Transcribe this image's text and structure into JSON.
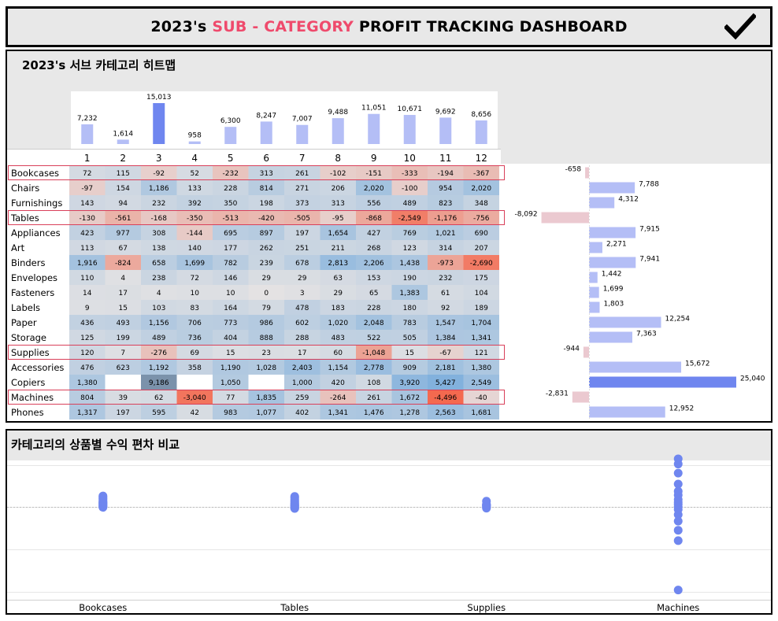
{
  "header": {
    "title_prefix": "2023's",
    "title_accent": "SUB - CATEGORY",
    "title_suffix": "PROFIT TRACKING DASHBOARD",
    "accent_color": "#ef4a6c",
    "check_icon": "checkmark-icon"
  },
  "heatmap_panel": {
    "title": "2023's 서브 카테고리 히트맵"
  },
  "compare_panel": {
    "title": "카테고리의 상품별 수익 편차 비교"
  },
  "chart_data": [
    {
      "type": "bar",
      "name": "monthly-total",
      "categories": [
        "1",
        "2",
        "3",
        "4",
        "5",
        "6",
        "7",
        "8",
        "9",
        "10",
        "11",
        "12"
      ],
      "values": [
        7232,
        1614,
        15013,
        958,
        6300,
        8247,
        7007,
        9488,
        11051,
        10671,
        9692,
        8656
      ],
      "value_labels": [
        "7,232",
        "1,614",
        "15,013",
        "958",
        "6,300",
        "8,247",
        "7,007",
        "9,488",
        "11,051",
        "10,671",
        "9,692",
        "8,656"
      ],
      "highlight_index": 2,
      "colors": {
        "bar": "#b4bef6",
        "highlight": "#6f86ef"
      }
    },
    {
      "type": "heatmap",
      "columns": [
        "1",
        "2",
        "3",
        "4",
        "5",
        "6",
        "7",
        "8",
        "9",
        "10",
        "11",
        "12"
      ],
      "rows": [
        "Bookcases",
        "Chairs",
        "Furnishings",
        "Tables",
        "Appliances",
        "Art",
        "Binders",
        "Envelopes",
        "Fasteners",
        "Labels",
        "Paper",
        "Storage",
        "Supplies",
        "Accessories",
        "Copiers",
        "Machines",
        "Phones"
      ],
      "highlighted_rows": [
        "Bookcases",
        "Tables",
        "Supplies",
        "Machines"
      ],
      "values": [
        [
          72,
          115,
          -92,
          52,
          -232,
          313,
          261,
          -102,
          -151,
          -333,
          -194,
          -367
        ],
        [
          -97,
          154,
          1186,
          133,
          228,
          814,
          271,
          206,
          2020,
          -100,
          954,
          2020
        ],
        [
          143,
          94,
          232,
          392,
          350,
          198,
          373,
          313,
          556,
          489,
          823,
          348
        ],
        [
          -130,
          -561,
          -168,
          -350,
          -513,
          -420,
          -505,
          -95,
          -868,
          -2549,
          -1176,
          -756
        ],
        [
          423,
          977,
          308,
          -144,
          695,
          897,
          197,
          1654,
          427,
          769,
          1021,
          690
        ],
        [
          113,
          67,
          138,
          140,
          177,
          262,
          251,
          211,
          268,
          123,
          314,
          207
        ],
        [
          1916,
          -824,
          658,
          1699,
          782,
          239,
          678,
          2813,
          2206,
          1438,
          -973,
          -2690
        ],
        [
          110,
          4,
          238,
          72,
          146,
          29,
          29,
          63,
          153,
          190,
          232,
          175
        ],
        [
          14,
          17,
          4,
          10,
          10,
          0,
          3,
          29,
          65,
          1383,
          61,
          104
        ],
        [
          9,
          15,
          103,
          83,
          164,
          79,
          478,
          183,
          228,
          180,
          92,
          189
        ],
        [
          436,
          493,
          1156,
          706,
          773,
          986,
          602,
          1020,
          2048,
          783,
          1547,
          1704
        ],
        [
          125,
          199,
          489,
          736,
          404,
          888,
          288,
          483,
          522,
          505,
          1384,
          1341
        ],
        [
          120,
          7,
          -276,
          69,
          15,
          23,
          17,
          60,
          -1048,
          15,
          -67,
          121
        ],
        [
          476,
          623,
          1192,
          358,
          1190,
          1028,
          2403,
          1154,
          2778,
          909,
          2181,
          1380
        ],
        [
          1380,
          null,
          9186,
          null,
          1050,
          null,
          1000,
          420,
          108,
          3920,
          5427,
          2549
        ],
        [
          804,
          39,
          62,
          -3040,
          77,
          1835,
          259,
          -264,
          261,
          1672,
          -4496,
          -40
        ],
        [
          1317,
          197,
          595,
          42,
          983,
          1077,
          402,
          1341,
          1476,
          1278,
          2563,
          1681
        ]
      ],
      "cell_labels": [
        [
          "72",
          "115",
          "-92",
          "52",
          "-232",
          "313",
          "261",
          "-102",
          "-151",
          "-333",
          "-194",
          "-367"
        ],
        [
          "-97",
          "154",
          "1,186",
          "133",
          "228",
          "814",
          "271",
          "206",
          "2,020",
          "-100",
          "954",
          "2,020"
        ],
        [
          "143",
          "94",
          "232",
          "392",
          "350",
          "198",
          "373",
          "313",
          "556",
          "489",
          "823",
          "348"
        ],
        [
          "-130",
          "-561",
          "-168",
          "-350",
          "-513",
          "-420",
          "-505",
          "-95",
          "-868",
          "-2,549",
          "-1,176",
          "-756"
        ],
        [
          "423",
          "977",
          "308",
          "-144",
          "695",
          "897",
          "197",
          "1,654",
          "427",
          "769",
          "1,021",
          "690"
        ],
        [
          "113",
          "67",
          "138",
          "140",
          "177",
          "262",
          "251",
          "211",
          "268",
          "123",
          "314",
          "207"
        ],
        [
          "1,916",
          "-824",
          "658",
          "1,699",
          "782",
          "239",
          "678",
          "2,813",
          "2,206",
          "1,438",
          "-973",
          "-2,690"
        ],
        [
          "110",
          "4",
          "238",
          "72",
          "146",
          "29",
          "29",
          "63",
          "153",
          "190",
          "232",
          "175"
        ],
        [
          "14",
          "17",
          "4",
          "10",
          "10",
          "0",
          "3",
          "29",
          "65",
          "1,383",
          "61",
          "104"
        ],
        [
          "9",
          "15",
          "103",
          "83",
          "164",
          "79",
          "478",
          "183",
          "228",
          "180",
          "92",
          "189"
        ],
        [
          "436",
          "493",
          "1,156",
          "706",
          "773",
          "986",
          "602",
          "1,020",
          "2,048",
          "783",
          "1,547",
          "1,704"
        ],
        [
          "125",
          "199",
          "489",
          "736",
          "404",
          "888",
          "288",
          "483",
          "522",
          "505",
          "1,384",
          "1,341"
        ],
        [
          "120",
          "7",
          "-276",
          "69",
          "15",
          "23",
          "17",
          "60",
          "-1,048",
          "15",
          "-67",
          "121"
        ],
        [
          "476",
          "623",
          "1,192",
          "358",
          "1,190",
          "1,028",
          "2,403",
          "1,154",
          "2,778",
          "909",
          "2,181",
          "1,380"
        ],
        [
          "1,380",
          "",
          "9,186",
          "",
          "1,050",
          "",
          "1,000",
          "420",
          "108",
          "3,920",
          "5,427",
          "2,549"
        ],
        [
          "804",
          "39",
          "62",
          "-3,040",
          "77",
          "1,835",
          "259",
          "-264",
          "261",
          "1,672",
          "-4,496",
          "-40"
        ],
        [
          "1,317",
          "197",
          "595",
          "42",
          "983",
          "1,077",
          "402",
          "1,341",
          "1,476",
          "1,278",
          "2,563",
          "1,681"
        ]
      ],
      "colors": {
        "positive": "#6fa8dc",
        "negative": "#f4694f",
        "neutral": "#e4e2e3",
        "highlight_border": "#d9405a"
      }
    },
    {
      "type": "bar",
      "orientation": "horizontal",
      "name": "subcategory-total",
      "categories": [
        "Bookcases",
        "Chairs",
        "Furnishings",
        "Tables",
        "Appliances",
        "Art",
        "Binders",
        "Envelopes",
        "Fasteners",
        "Labels",
        "Paper",
        "Storage",
        "Supplies",
        "Accessories",
        "Copiers",
        "Machines",
        "Phones"
      ],
      "values": [
        -658,
        7788,
        4312,
        -8092,
        7915,
        2271,
        7941,
        1442,
        1699,
        1803,
        12254,
        7363,
        -944,
        15672,
        25040,
        -2831,
        12952
      ],
      "value_labels": [
        "-658",
        "7,788",
        "4,312",
        "-8,092",
        "7,915",
        "2,271",
        "7,941",
        "1,442",
        "1,699",
        "1,803",
        "12,254",
        "7,363",
        "-944",
        "15,672",
        "25,040",
        "-2,831",
        "12,952"
      ],
      "colors": {
        "positive": "#b4bef6",
        "max": "#6f86ef",
        "negative": "#ebc9d0"
      }
    },
    {
      "type": "scatter",
      "name": "profit-deviation",
      "categories": [
        "Bookcases",
        "Tables",
        "Supplies",
        "Machines"
      ],
      "series": [
        {
          "category": "Bookcases",
          "values": [
            -2,
            2,
            3,
            6,
            9,
            11,
            14,
            16,
            18,
            20,
            24,
            30,
            33,
            38,
            42
          ]
        },
        {
          "category": "Tables",
          "values": [
            -6,
            -4,
            -2,
            2,
            4,
            6,
            9,
            12,
            16,
            20,
            24,
            30,
            36,
            40
          ]
        },
        {
          "category": "Supplies",
          "values": [
            -5,
            -2,
            2,
            4,
            6,
            8,
            10,
            22
          ]
        },
        {
          "category": "Machines",
          "values": [
            -320,
            -130,
            -90,
            -55,
            -30,
            -10,
            0,
            10,
            18,
            28,
            45,
            60,
            88,
            130,
            165,
            185
          ]
        }
      ],
      "colors": {
        "point": "#6f86ef"
      }
    }
  ]
}
